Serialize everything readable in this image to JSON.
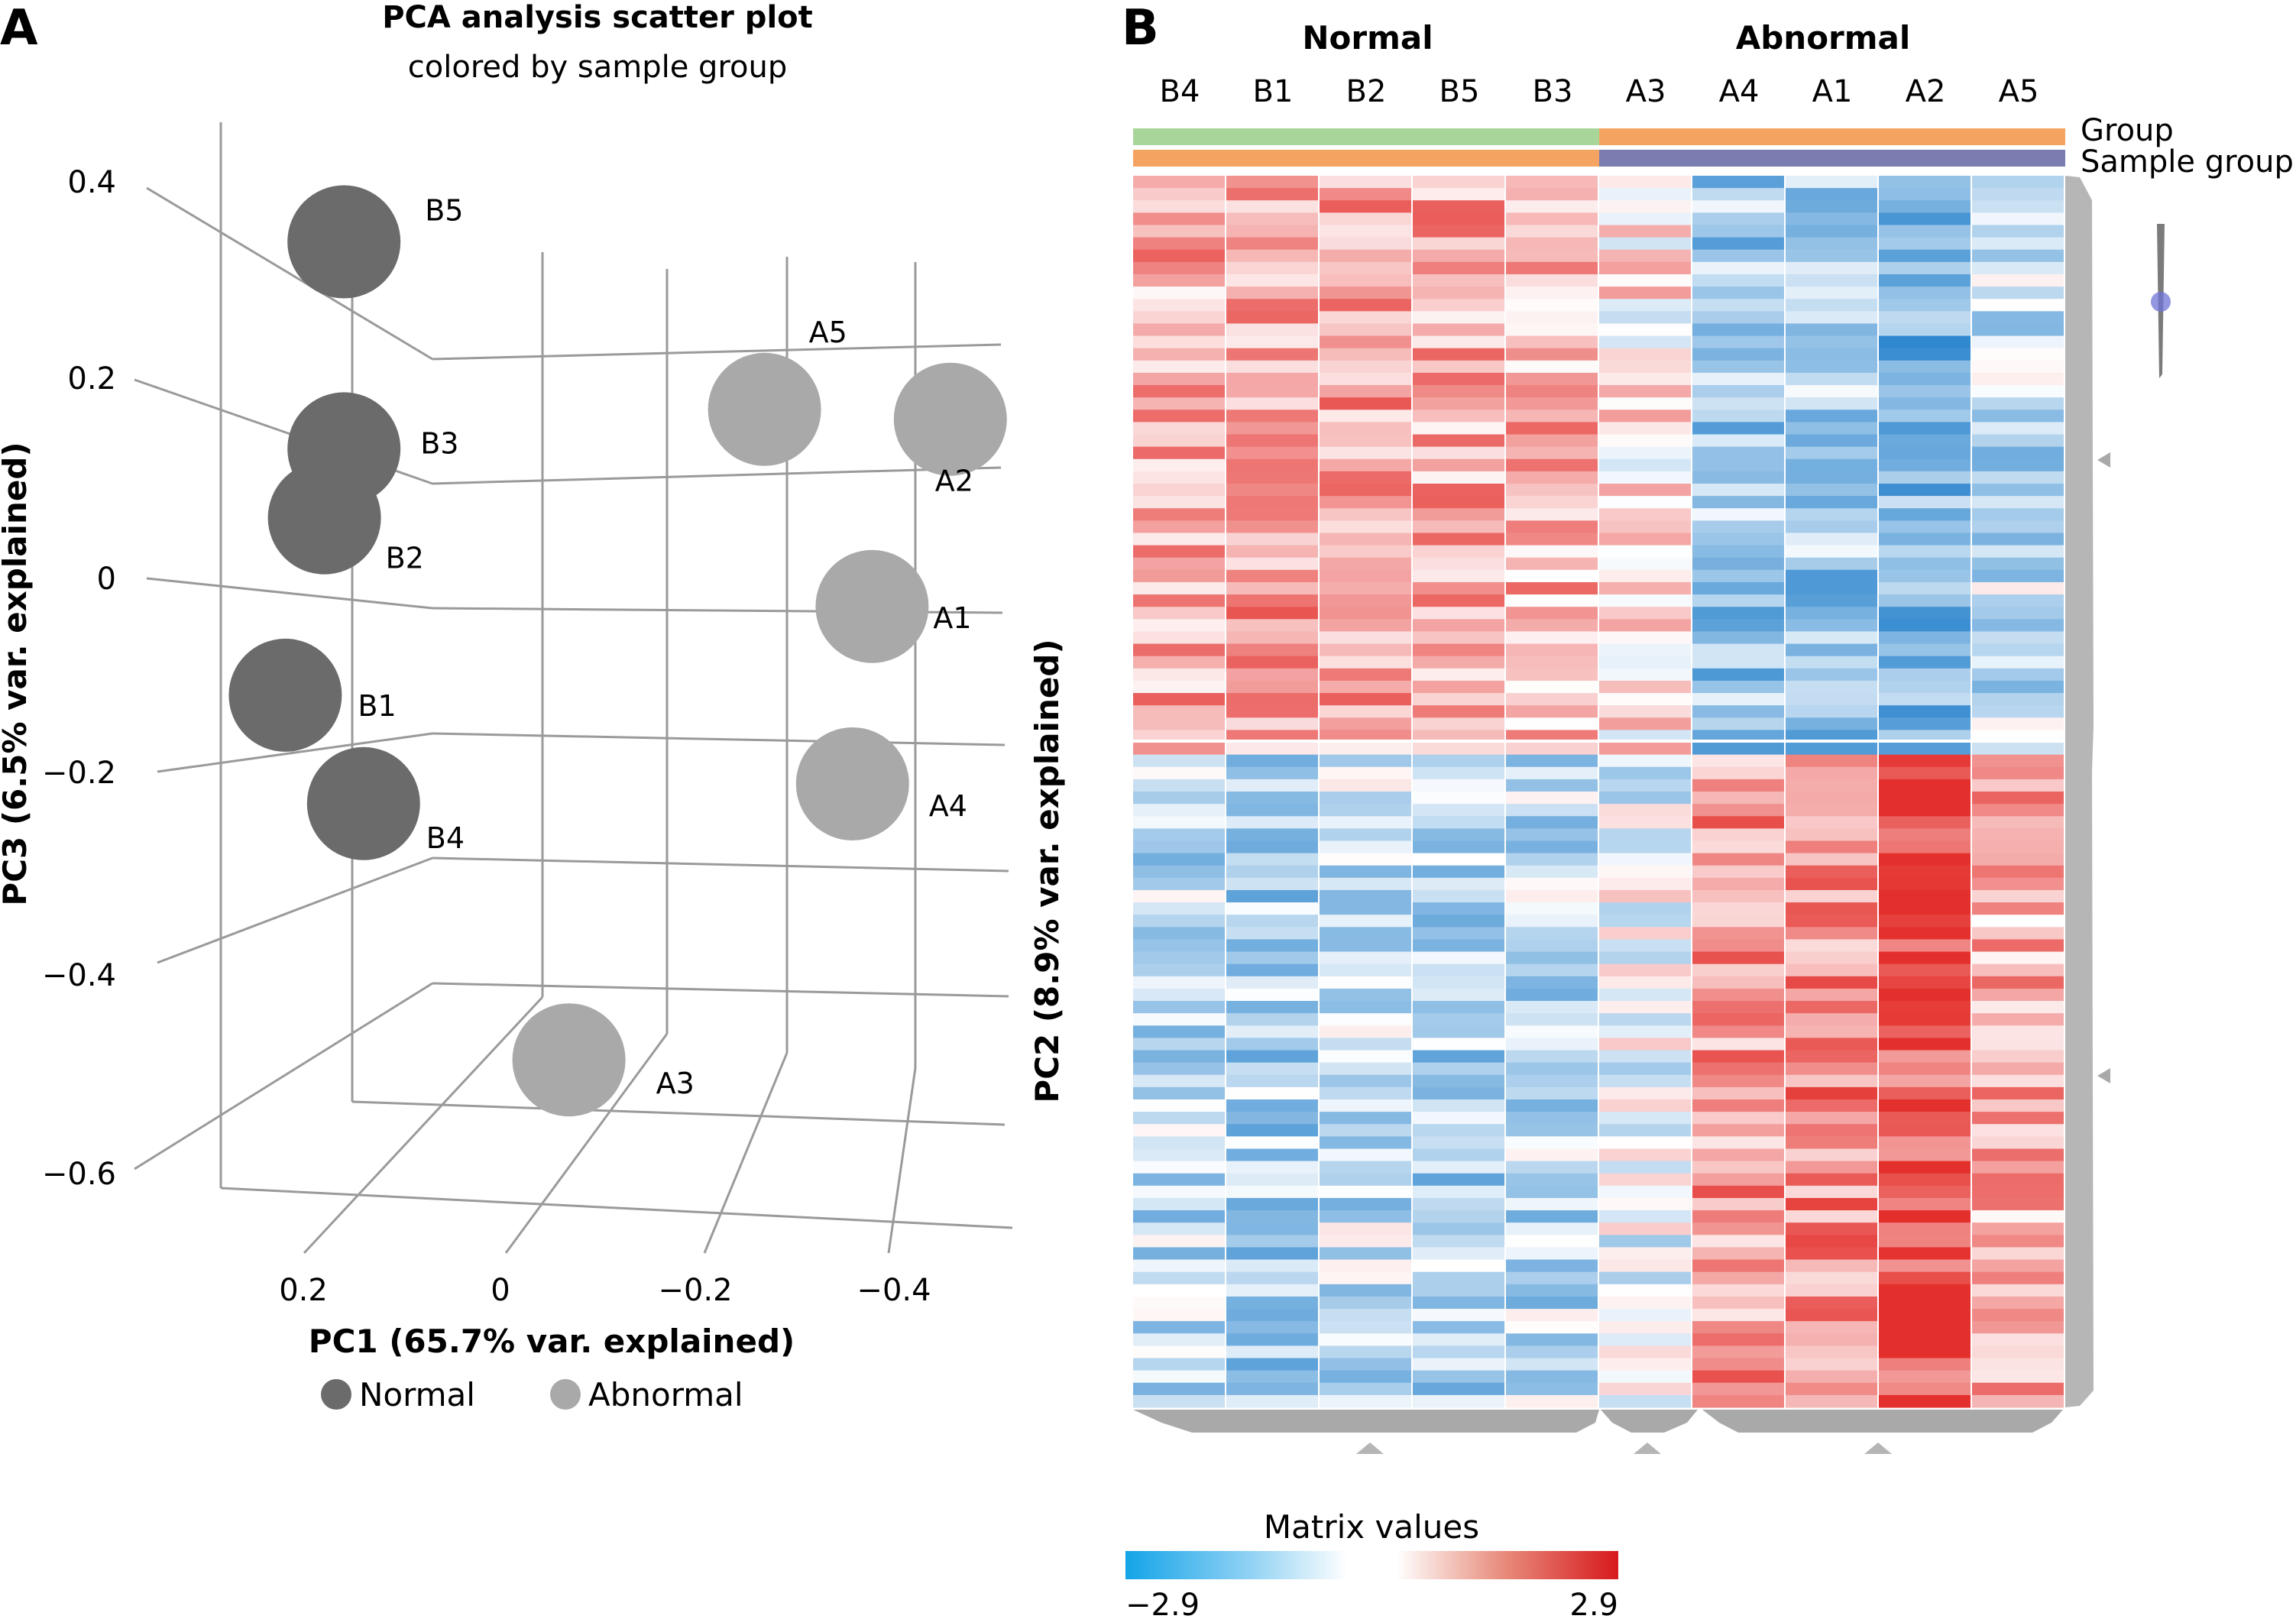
{
  "colors": {
    "normal": "#6b6b6b",
    "abnormal": "#a9a9a9",
    "grid": "#9a9a9a",
    "low": "#1f7ecb",
    "mid": "#ffffff",
    "high": "#e4302c",
    "group_normal_bar": "#a8d59a",
    "group_abnormal_bar": "#f4a460",
    "sample_group_bar_left": "#f4a460",
    "sample_group_bar_right": "#7b7db0",
    "dendro": "#a9a9a9"
  },
  "panel_a": {
    "letter": "A",
    "title": "PCA analysis scatter plot",
    "subtitle": "colored by sample group",
    "legend": [
      {
        "label": "Normal",
        "color": "#6b6b6b"
      },
      {
        "label": "Abnormal",
        "color": "#a9a9a9"
      }
    ]
  },
  "panel_b": {
    "letter": "B",
    "group_titles": {
      "normal": "Normal",
      "abnormal": "Abnormal"
    },
    "annotation_labels": {
      "group": "Group",
      "sample_group": "Sample group"
    },
    "colorbar": {
      "title": "Matrix values",
      "min_label": "−2.9",
      "max_label": "2.9"
    }
  },
  "chart_data": [
    {
      "type": "scatter",
      "title": "PCA analysis scatter plot",
      "subtitle": "colored by sample group",
      "xlabel": "PC1 (65.7% var. explained)",
      "ylabel": "PC3 (6.5% var. explained)",
      "zlabel": "PC2 (8.9% var. explained)",
      "x_ticks": [
        "0.2",
        "0",
        "−0.2",
        "−0.4"
      ],
      "z_ticks": [
        "0.4",
        "0.2",
        "0",
        "−0.2",
        "−0.4",
        "−0.6"
      ],
      "series": [
        {
          "name": "Normal",
          "points": [
            {
              "label": "B5",
              "pc1": 0.16,
              "pc3": 0.35
            },
            {
              "label": "B3",
              "pc1": 0.16,
              "pc3": 0.14
            },
            {
              "label": "B2",
              "pc1": 0.18,
              "pc3": 0.07
            },
            {
              "label": "B1",
              "pc1": 0.22,
              "pc3": -0.11
            },
            {
              "label": "B4",
              "pc1": 0.14,
              "pc3": -0.22
            }
          ]
        },
        {
          "name": "Abnormal",
          "points": [
            {
              "label": "A5",
              "pc1": -0.27,
              "pc3": 0.18
            },
            {
              "label": "A2",
              "pc1": -0.46,
              "pc3": 0.17
            },
            {
              "label": "A1",
              "pc1": -0.38,
              "pc3": -0.02
            },
            {
              "label": "A4",
              "pc1": -0.36,
              "pc3": -0.2
            },
            {
              "label": "A3",
              "pc1": -0.07,
              "pc3": -0.48
            }
          ]
        }
      ]
    },
    {
      "type": "heatmap",
      "columns": [
        "B4",
        "B1",
        "B2",
        "B5",
        "B3",
        "A3",
        "A4",
        "A1",
        "A2",
        "A5"
      ],
      "column_groups": [
        "Normal",
        "Normal",
        "Normal",
        "Normal",
        "Normal",
        "Abnormal",
        "Abnormal",
        "Abnormal",
        "Abnormal",
        "Abnormal"
      ],
      "row_count": 100,
      "row_split": 47,
      "value_range": [
        -2.9,
        2.9
      ],
      "block_means": {
        "upper_rows": [
          1.2,
          1.4,
          1.3,
          1.2,
          1.1,
          0.3,
          -1.2,
          -1.2,
          -1.6,
          -0.8
        ],
        "lower_rows": [
          -0.9,
          -1.0,
          -0.7,
          -1.0,
          -0.8,
          -0.2,
          1.4,
          1.6,
          2.3,
          1.1
        ]
      },
      "colorbar_title": "Matrix values"
    }
  ]
}
